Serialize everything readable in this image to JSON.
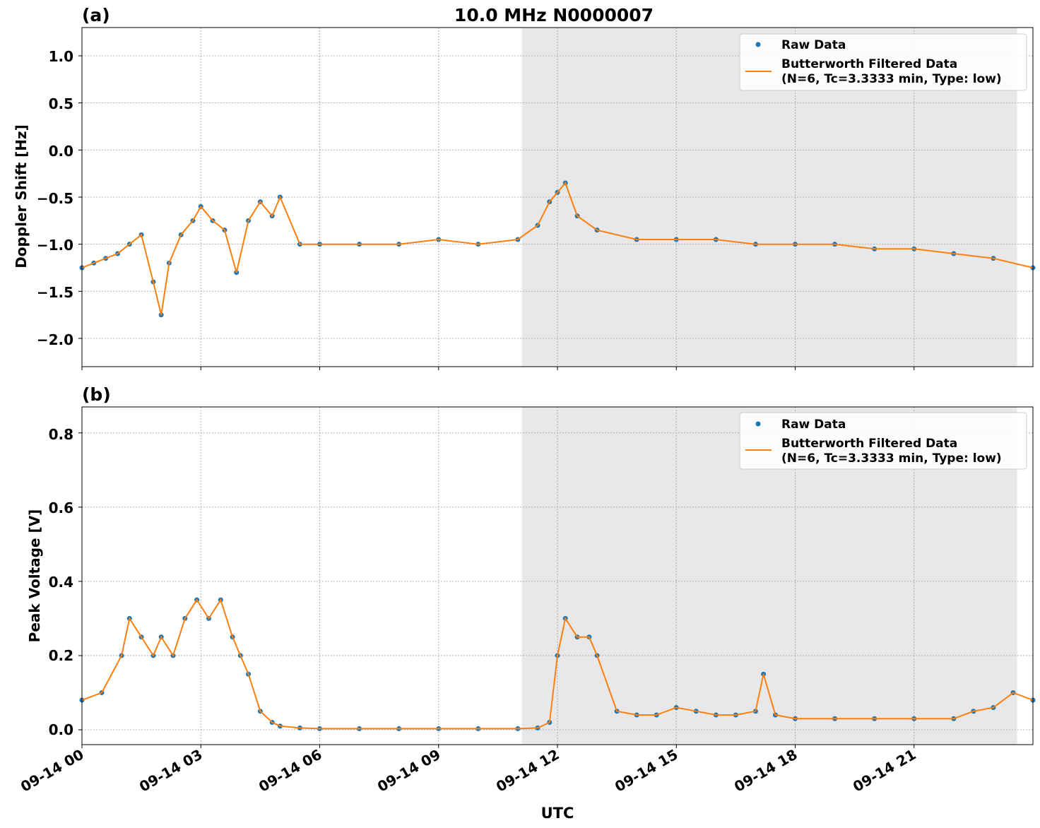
{
  "title": "10.0 MHz N0000007",
  "xlabel": "UTC",
  "x_ticks": [
    "09-14 00",
    "09-14 03",
    "09-14 06",
    "09-14 09",
    "09-14 12",
    "09-14 15",
    "09-14 18",
    "09-14 21"
  ],
  "colors": {
    "raw": "#1f77b4",
    "filtered": "#ff7f0e",
    "shade": "#e8e8e8"
  },
  "legend": {
    "raw_label": "Raw Data",
    "filtered_label_line1": "Butterworth Filtered Data",
    "filtered_label_line2": "(N=6, Tc=3.3333 min, Type: low)"
  },
  "panels": [
    {
      "label": "(a)",
      "ylabel": "Doppler Shift [Hz]",
      "y_ticks": [
        "1.0",
        "0.5",
        "0.0",
        "−0.5",
        "−1.0",
        "−1.5",
        "−2.0"
      ]
    },
    {
      "label": "(b)",
      "ylabel": "Peak Voltage [V]",
      "y_ticks": [
        "0.8",
        "0.6",
        "0.4",
        "0.2",
        "0.0"
      ]
    }
  ],
  "chart_data": [
    {
      "type": "scatter",
      "title": "10.0 MHz N0000007",
      "panel": "(a)",
      "xlabel": "",
      "ylabel": "Doppler Shift [Hz]",
      "x_unit": "hours UTC on 09-14",
      "xlim": [
        0,
        24
      ],
      "ylim": [
        -2.3,
        1.3
      ],
      "grid": true,
      "legend_position": "top-right",
      "shaded_x_range": [
        11.1,
        23.6
      ],
      "series": [
        {
          "name": "Raw Data",
          "kind": "points",
          "x": [
            0,
            0.3,
            0.6,
            0.9,
            1.2,
            1.5,
            1.8,
            2.0,
            2.2,
            2.5,
            2.8,
            3.0,
            3.3,
            3.6,
            3.9,
            4.2,
            4.5,
            4.8,
            5.0,
            5.5,
            6.0,
            7.0,
            8.0,
            9.0,
            10.0,
            11.0,
            11.5,
            11.8,
            12.0,
            12.2,
            12.5,
            13.0,
            14.0,
            15.0,
            16.0,
            17.0,
            18.0,
            19.0,
            20.0,
            21.0,
            22.0,
            23.0,
            24.0
          ],
          "y": [
            -1.25,
            -1.2,
            -1.15,
            -1.1,
            -1.0,
            -0.9,
            -1.4,
            -1.75,
            -1.2,
            -0.9,
            -0.75,
            -0.6,
            -0.75,
            -0.85,
            -1.3,
            -0.75,
            -0.55,
            -0.7,
            -0.5,
            -1.0,
            -1.0,
            -1.0,
            -1.0,
            -0.95,
            -1.0,
            -0.95,
            -0.8,
            -0.55,
            -0.45,
            -0.35,
            -0.7,
            -0.85,
            -0.95,
            -0.95,
            -0.95,
            -1.0,
            -1.0,
            -1.0,
            -1.05,
            -1.05,
            -1.1,
            -1.15,
            -1.25
          ]
        },
        {
          "name": "Butterworth Filtered Data (N=6, Tc=3.3333 min, Type: low)",
          "kind": "line",
          "x": [
            0,
            0.3,
            0.6,
            0.9,
            1.2,
            1.5,
            1.8,
            2.0,
            2.2,
            2.5,
            2.8,
            3.0,
            3.3,
            3.6,
            3.9,
            4.2,
            4.5,
            4.8,
            5.0,
            5.5,
            6.0,
            7.0,
            8.0,
            9.0,
            10.0,
            11.0,
            11.5,
            11.8,
            12.0,
            12.2,
            12.5,
            13.0,
            14.0,
            15.0,
            16.0,
            17.0,
            18.0,
            19.0,
            20.0,
            21.0,
            22.0,
            23.0,
            24.0
          ],
          "y": [
            -1.25,
            -1.2,
            -1.15,
            -1.1,
            -1.0,
            -0.9,
            -1.4,
            -1.75,
            -1.2,
            -0.9,
            -0.75,
            -0.6,
            -0.75,
            -0.85,
            -1.3,
            -0.75,
            -0.55,
            -0.7,
            -0.5,
            -1.0,
            -1.0,
            -1.0,
            -1.0,
            -0.95,
            -1.0,
            -0.95,
            -0.8,
            -0.55,
            -0.45,
            -0.35,
            -0.7,
            -0.85,
            -0.95,
            -0.95,
            -0.95,
            -1.0,
            -1.0,
            -1.0,
            -1.05,
            -1.05,
            -1.1,
            -1.15,
            -1.25
          ]
        }
      ]
    },
    {
      "type": "scatter",
      "panel": "(b)",
      "xlabel": "UTC",
      "ylabel": "Peak Voltage [V]",
      "x_unit": "hours UTC on 09-14",
      "xlim": [
        0,
        24
      ],
      "ylim": [
        -0.04,
        0.87
      ],
      "grid": true,
      "legend_position": "top-right",
      "shaded_x_range": [
        11.1,
        23.6
      ],
      "series": [
        {
          "name": "Raw Data",
          "kind": "points",
          "x": [
            0,
            0.5,
            1.0,
            1.2,
            1.5,
            1.8,
            2.0,
            2.3,
            2.6,
            2.9,
            3.2,
            3.5,
            3.8,
            4.0,
            4.2,
            4.5,
            4.8,
            5.0,
            5.5,
            6.0,
            7.0,
            8.0,
            9.0,
            10.0,
            11.0,
            11.5,
            11.8,
            12.0,
            12.2,
            12.5,
            12.8,
            13.0,
            13.5,
            14.0,
            14.5,
            15.0,
            15.5,
            16.0,
            16.5,
            17.0,
            17.2,
            17.5,
            18.0,
            19.0,
            20.0,
            21.0,
            22.0,
            22.5,
            23.0,
            23.5,
            24.0
          ],
          "y": [
            0.08,
            0.1,
            0.2,
            0.3,
            0.25,
            0.2,
            0.25,
            0.2,
            0.3,
            0.35,
            0.3,
            0.35,
            0.25,
            0.2,
            0.15,
            0.05,
            0.02,
            0.01,
            0.005,
            0.003,
            0.003,
            0.003,
            0.003,
            0.003,
            0.003,
            0.005,
            0.02,
            0.2,
            0.3,
            0.25,
            0.25,
            0.2,
            0.05,
            0.04,
            0.04,
            0.06,
            0.05,
            0.04,
            0.04,
            0.05,
            0.15,
            0.04,
            0.03,
            0.03,
            0.03,
            0.03,
            0.03,
            0.05,
            0.06,
            0.1,
            0.08
          ]
        },
        {
          "name": "Butterworth Filtered Data (N=6, Tc=3.3333 min, Type: low)",
          "kind": "line",
          "x": [
            0,
            0.5,
            1.0,
            1.2,
            1.5,
            1.8,
            2.0,
            2.3,
            2.6,
            2.9,
            3.2,
            3.5,
            3.8,
            4.0,
            4.2,
            4.5,
            4.8,
            5.0,
            5.5,
            6.0,
            7.0,
            8.0,
            9.0,
            10.0,
            11.0,
            11.5,
            11.8,
            12.0,
            12.2,
            12.5,
            12.8,
            13.0,
            13.5,
            14.0,
            14.5,
            15.0,
            15.5,
            16.0,
            16.5,
            17.0,
            17.2,
            17.5,
            18.0,
            19.0,
            20.0,
            21.0,
            22.0,
            22.5,
            23.0,
            23.5,
            24.0
          ],
          "y": [
            0.08,
            0.1,
            0.2,
            0.3,
            0.25,
            0.2,
            0.25,
            0.2,
            0.3,
            0.35,
            0.3,
            0.35,
            0.25,
            0.2,
            0.15,
            0.05,
            0.02,
            0.01,
            0.005,
            0.003,
            0.003,
            0.003,
            0.003,
            0.003,
            0.003,
            0.005,
            0.02,
            0.2,
            0.3,
            0.25,
            0.25,
            0.2,
            0.05,
            0.04,
            0.04,
            0.06,
            0.05,
            0.04,
            0.04,
            0.05,
            0.15,
            0.04,
            0.03,
            0.03,
            0.03,
            0.03,
            0.03,
            0.05,
            0.06,
            0.1,
            0.08
          ]
        }
      ]
    }
  ]
}
